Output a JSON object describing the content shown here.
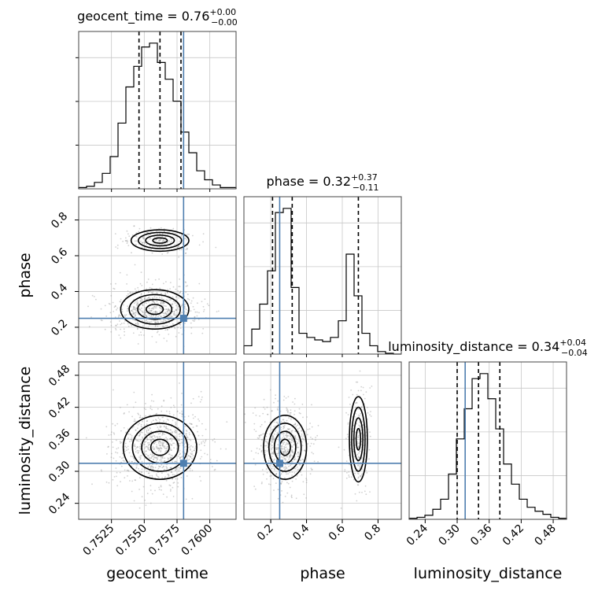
{
  "chart_data": {
    "type": "corner",
    "colors": {
      "truth": "#4f7fb0",
      "histogram": "#000000",
      "density": "#000000",
      "grid": "#c8c8c8"
    },
    "parameters": [
      "geocent_time",
      "phase",
      "luminosity_distance"
    ],
    "titles": {
      "geocent_time": {
        "label": "geocent_time = 0.76",
        "plus": "+0.00",
        "minus": "−0.00"
      },
      "phase": {
        "label": "phase = 0.32",
        "plus": "+0.37",
        "minus": "−0.11"
      },
      "luminosity_distance": {
        "label": "luminosity_distance = 0.34",
        "plus": "+0.04",
        "minus": "−0.04"
      }
    },
    "axis_labels": {
      "geocent_time": "geocent_time",
      "phase": "phase",
      "luminosity_distance": "luminosity_distance"
    },
    "ranges": {
      "geocent_time": [
        0.75,
        0.762
      ],
      "phase": [
        0.05,
        0.93
      ],
      "luminosity_distance": [
        0.21,
        0.505
      ]
    },
    "ticks": {
      "geocent_time": [
        "0.7525",
        "0.7550",
        "0.7575",
        "0.7600"
      ],
      "phase": [
        "0.2",
        "0.4",
        "0.6",
        "0.8"
      ],
      "luminosity_distance": [
        "0.24",
        "0.30",
        "0.36",
        "0.42",
        "0.48"
      ]
    },
    "truths": {
      "geocent_time": 0.758,
      "phase": 0.25,
      "luminosity_distance": 0.315
    },
    "quantiles": {
      "geocent_time": [
        0.7546,
        0.7562,
        0.7578
      ],
      "phase": [
        0.21,
        0.32,
        0.69
      ],
      "luminosity_distance": [
        0.3,
        0.34,
        0.38
      ]
    },
    "histograms": {
      "geocent_time": {
        "edges": [
          0.75,
          0.7506,
          0.7512,
          0.7518,
          0.7524,
          0.753,
          0.7536,
          0.7542,
          0.7548,
          0.7554,
          0.756,
          0.7566,
          0.7572,
          0.7578,
          0.7584,
          0.759,
          0.7596,
          0.7602,
          0.7608,
          0.7614,
          0.762
        ],
        "counts": [
          1,
          2,
          5,
          12,
          25,
          51,
          79,
          95,
          110,
          113,
          98,
          85,
          68,
          44,
          28,
          14,
          7,
          3,
          1,
          1
        ]
      },
      "phase": {
        "edges": [
          0.05,
          0.094,
          0.138,
          0.182,
          0.226,
          0.27,
          0.314,
          0.358,
          0.402,
          0.446,
          0.49,
          0.534,
          0.578,
          0.622,
          0.666,
          0.71,
          0.754,
          0.798,
          0.842,
          0.886,
          0.93
        ],
        "counts": [
          10,
          30,
          60,
          100,
          170,
          175,
          80,
          25,
          20,
          17,
          15,
          20,
          40,
          120,
          70,
          25,
          10,
          3,
          1,
          0
        ]
      },
      "luminosity_distance": {
        "edges": [
          0.21,
          0.2248,
          0.2395,
          0.2543,
          0.269,
          0.2838,
          0.2985,
          0.3133,
          0.328,
          0.3428,
          0.3575,
          0.3723,
          0.387,
          0.4018,
          0.4165,
          0.4313,
          0.446,
          0.4608,
          0.4755,
          0.4903,
          0.505
        ],
        "counts": [
          1,
          2,
          4,
          10,
          20,
          45,
          80,
          110,
          140,
          145,
          120,
          90,
          55,
          35,
          20,
          12,
          8,
          5,
          2,
          1
        ]
      }
    },
    "density_2d": [
      {
        "x": "geocent_time",
        "y": "phase",
        "modes": [
          {
            "x": 0.7558,
            "y": 0.3,
            "sx": 0.0013,
            "sy": 0.055,
            "weight": 0.75
          },
          {
            "x": 0.7562,
            "y": 0.685,
            "sx": 0.0011,
            "sy": 0.03,
            "weight": 0.25
          }
        ]
      },
      {
        "x": "geocent_time",
        "y": "luminosity_distance",
        "modes": [
          {
            "x": 0.7562,
            "y": 0.345,
            "sx": 0.0014,
            "sy": 0.03,
            "weight": 1.0
          }
        ]
      },
      {
        "x": "phase",
        "y": "luminosity_distance",
        "modes": [
          {
            "x": 0.28,
            "y": 0.345,
            "sx": 0.06,
            "sy": 0.03,
            "weight": 0.75
          },
          {
            "x": 0.69,
            "y": 0.36,
            "sx": 0.025,
            "sy": 0.04,
            "weight": 0.25
          }
        ]
      }
    ],
    "grid": true
  }
}
